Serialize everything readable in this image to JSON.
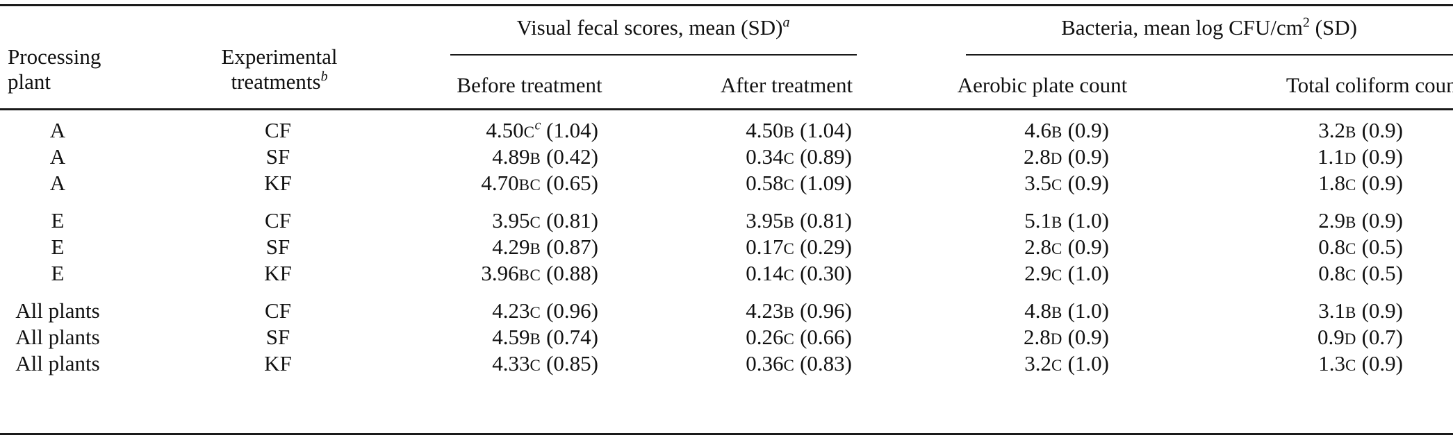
{
  "header": {
    "col_plant": "Processing plant",
    "col_plant_line1": "Processing",
    "col_plant_line2": "plant",
    "col_treatment_line1": "Experimental",
    "col_treatment_line2": "treatments",
    "col_treatment_footnote": "b",
    "group_visual": "Visual fecal scores, mean (SD)",
    "group_visual_footnote": "a",
    "group_bacteria_prefix": "Bacteria, mean log CFU/cm",
    "group_bacteria_sup": "2",
    "group_bacteria_suffix": " (SD)",
    "sub_before": "Before treatment",
    "sub_after": "After treatment",
    "sub_aerobic": "Aerobic plate count",
    "sub_coliform": "Total coliform count"
  },
  "rows": [
    {
      "plant": "A",
      "treatment": "CF",
      "before": {
        "v": "4.50",
        "l": "C",
        "fn": "c",
        "sd": " (1.04)"
      },
      "after": {
        "v": "4.50",
        "l": "B",
        "sd": " (1.04)"
      },
      "aerobic": {
        "v": "4.6",
        "l": "B",
        "sd": " (0.9)"
      },
      "coliform": {
        "v": "3.2",
        "l": "B",
        "sd": " (0.9)"
      }
    },
    {
      "plant": "A",
      "treatment": "SF",
      "before": {
        "v": "4.89",
        "l": "B",
        "sd": " (0.42)"
      },
      "after": {
        "v": "0.34",
        "l": "C",
        "sd": " (0.89)"
      },
      "aerobic": {
        "v": "2.8",
        "l": "D",
        "sd": " (0.9)"
      },
      "coliform": {
        "v": "1.1",
        "l": "D",
        "sd": " (0.9)"
      }
    },
    {
      "plant": "A",
      "treatment": "KF",
      "before": {
        "v": "4.70",
        "l": "BC",
        "sd": " (0.65)"
      },
      "after": {
        "v": "0.58",
        "l": "C",
        "sd": " (1.09)"
      },
      "aerobic": {
        "v": "3.5",
        "l": "C",
        "sd": " (0.9)"
      },
      "coliform": {
        "v": "1.8",
        "l": "C",
        "sd": " (0.9)"
      }
    },
    {
      "plant": "E",
      "treatment": "CF",
      "before": {
        "v": "3.95",
        "l": "C",
        "sd": " (0.81)"
      },
      "after": {
        "v": "3.95",
        "l": "B",
        "sd": " (0.81)"
      },
      "aerobic": {
        "v": "5.1",
        "l": "B",
        "sd": " (1.0)"
      },
      "coliform": {
        "v": "2.9",
        "l": "B",
        "sd": " (0.9)"
      }
    },
    {
      "plant": "E",
      "treatment": "SF",
      "before": {
        "v": "4.29",
        "l": "B",
        "sd": " (0.87)"
      },
      "after": {
        "v": "0.17",
        "l": "C",
        "sd": " (0.29)"
      },
      "aerobic": {
        "v": "2.8",
        "l": "C",
        "sd": " (0.9)"
      },
      "coliform": {
        "v": "0.8",
        "l": "C",
        "sd": " (0.5)"
      }
    },
    {
      "plant": "E",
      "treatment": "KF",
      "before": {
        "v": "3.96",
        "l": "BC",
        "sd": " (0.88)"
      },
      "after": {
        "v": "0.14",
        "l": "C",
        "sd": " (0.30)"
      },
      "aerobic": {
        "v": "2.9",
        "l": "C",
        "sd": " (1.0)"
      },
      "coliform": {
        "v": "0.8",
        "l": "C",
        "sd": " (0.5)"
      }
    },
    {
      "plant": "All plants",
      "treatment": "CF",
      "before": {
        "v": "4.23",
        "l": "C",
        "sd": " (0.96)"
      },
      "after": {
        "v": "4.23",
        "l": "B",
        "sd": " (0.96)"
      },
      "aerobic": {
        "v": "4.8",
        "l": "B",
        "sd": " (1.0)"
      },
      "coliform": {
        "v": "3.1",
        "l": "B",
        "sd": " (0.9)"
      }
    },
    {
      "plant": "All plants",
      "treatment": "SF",
      "before": {
        "v": "4.59",
        "l": "B",
        "sd": " (0.74)"
      },
      "after": {
        "v": "0.26",
        "l": "C",
        "sd": " (0.66)"
      },
      "aerobic": {
        "v": "2.8",
        "l": "D",
        "sd": " (0.9)"
      },
      "coliform": {
        "v": "0.9",
        "l": "D",
        "sd": " (0.7)"
      }
    },
    {
      "plant": "All plants",
      "treatment": "KF",
      "before": {
        "v": "4.33",
        "l": "C",
        "sd": " (0.85)"
      },
      "after": {
        "v": "0.36",
        "l": "C",
        "sd": " (0.83)"
      },
      "aerobic": {
        "v": "3.2",
        "l": "C",
        "sd": " (1.0)"
      },
      "coliform": {
        "v": "1.3",
        "l": "C",
        "sd": " (0.9)"
      }
    }
  ]
}
